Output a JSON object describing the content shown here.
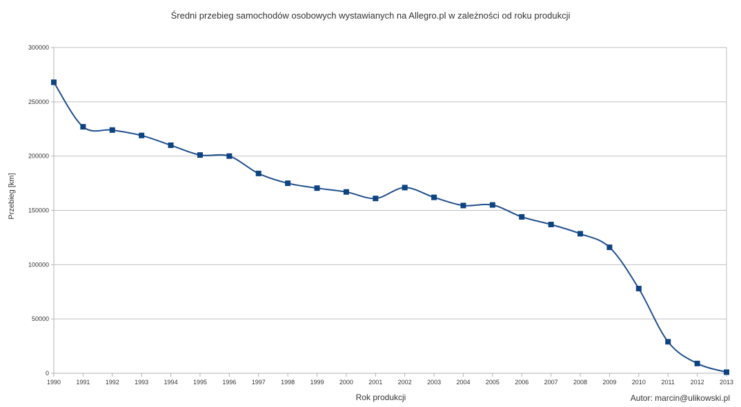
{
  "chart_data": {
    "type": "line",
    "title": "Średni przebieg samochodów osobowych wystawianych na Allegro.pl w zależności od roku produkcji",
    "xlabel": "Rok produkcji",
    "ylabel": "Przebieg [km]",
    "ylim": [
      0,
      300000
    ],
    "y_ticks": [
      "0",
      "50000",
      "100000",
      "150000",
      "200000",
      "250000",
      "300000"
    ],
    "x": [
      "1990",
      "1991",
      "1992",
      "1993",
      "1994",
      "1995",
      "1996",
      "1997",
      "1998",
      "1999",
      "2000",
      "2001",
      "2002",
      "2003",
      "2004",
      "2005",
      "2006",
      "2007",
      "2008",
      "2009",
      "2010",
      "2011",
      "2012",
      "2013"
    ],
    "series": [
      {
        "values": [
          268000,
          227000,
          224000,
          219000,
          210000,
          201000,
          200000,
          184000,
          175000,
          170500,
          167000,
          161000,
          171000,
          162000,
          154500,
          155000,
          144000,
          137000,
          128500,
          116000,
          78000,
          29000,
          9000,
          1000
        ]
      }
    ],
    "grid": true,
    "legend": "none",
    "line_color": "#1f4e8c",
    "marker_color": "#0d4480",
    "grid_color": "#bfbfbf"
  },
  "credit": "Autor: marcin@ulikowski.pl"
}
